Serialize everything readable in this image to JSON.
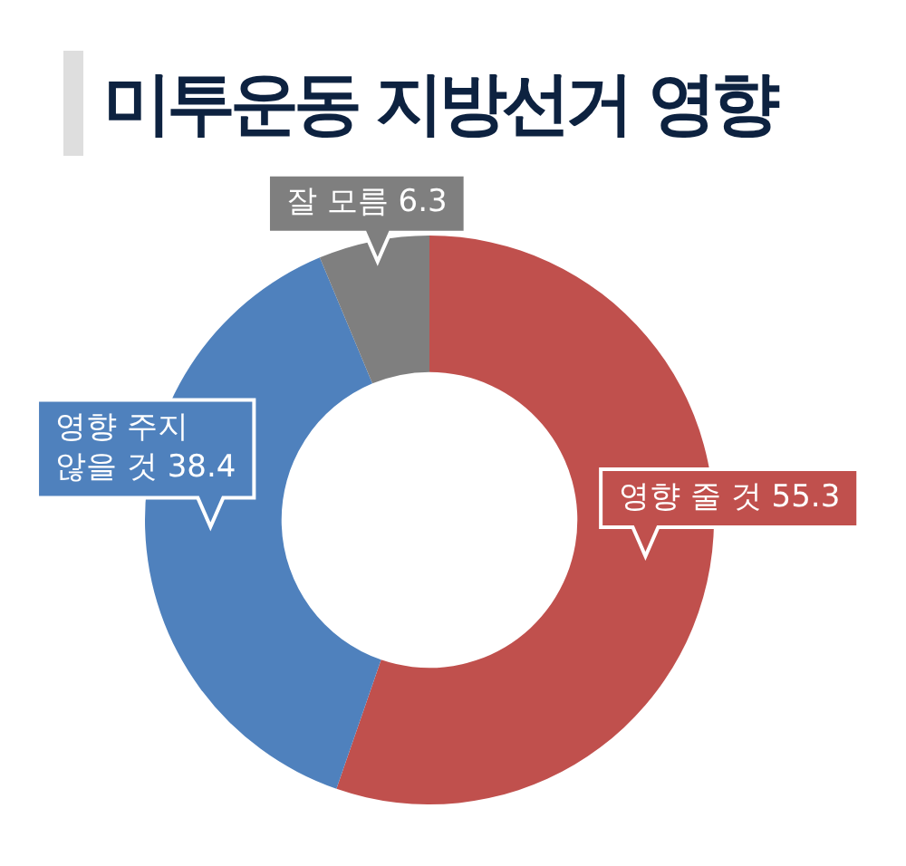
{
  "chart_data": {
    "type": "donut",
    "title": "미투운동 지방선거 영향",
    "categories": [
      "영향 줄 것",
      "영향 주지 않을 것",
      "잘 모름"
    ],
    "values": [
      55.3,
      38.4,
      6.3
    ],
    "colors": [
      "#c0504d",
      "#4f81bd",
      "#7f7f7f"
    ],
    "data_labels": true,
    "legend": false
  }
}
